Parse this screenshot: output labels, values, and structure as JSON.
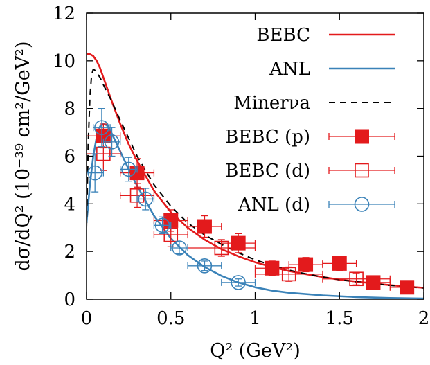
{
  "chart_data": {
    "type": "line",
    "xlabel": "Q² (GeV²)",
    "ylabel": "dσ/dQ² (10⁻³⁹ cm²/GeV²)",
    "xlim": [
      0,
      2
    ],
    "ylim": [
      0,
      12
    ],
    "xticks": [
      0,
      0.5,
      1,
      1.5,
      2
    ],
    "xtick_labels": [
      "0",
      "0.5",
      "1",
      "1.5",
      "2"
    ],
    "yticks": [
      0,
      2,
      4,
      6,
      8,
      10,
      12
    ],
    "ytick_labels": [
      "0",
      "2",
      "4",
      "6",
      "8",
      "10",
      "12"
    ],
    "grid": false,
    "legend_position": "top-right",
    "colors": {
      "red": "#e31a1c",
      "blue": "#3a82b8",
      "black": "#000000"
    },
    "series": [
      {
        "name": "BEBC",
        "kind": "line",
        "color": "#e31a1c",
        "dash": "solid",
        "x": [
          0.0,
          0.02,
          0.04,
          0.06,
          0.08,
          0.1,
          0.15,
          0.2,
          0.25,
          0.3,
          0.4,
          0.5,
          0.6,
          0.7,
          0.8,
          0.9,
          1.0,
          1.1,
          1.2,
          1.3,
          1.4,
          1.5,
          1.6,
          1.7,
          1.8,
          1.9,
          2.0
        ],
        "y": [
          10.3,
          10.28,
          10.2,
          10.0,
          9.7,
          9.3,
          8.3,
          7.35,
          6.5,
          5.8,
          4.55,
          3.65,
          3.0,
          2.5,
          2.1,
          1.8,
          1.55,
          1.35,
          1.18,
          1.05,
          0.93,
          0.82,
          0.74,
          0.66,
          0.59,
          0.53,
          0.48
        ]
      },
      {
        "name": "ANL",
        "kind": "line",
        "color": "#3a82b8",
        "dash": "solid",
        "x": [
          0.0,
          0.02,
          0.04,
          0.06,
          0.08,
          0.1,
          0.12,
          0.15,
          0.2,
          0.25,
          0.3,
          0.4,
          0.5,
          0.6,
          0.7,
          0.8,
          0.9,
          1.0,
          1.1,
          1.2,
          1.4,
          1.6,
          1.8,
          2.0
        ],
        "y": [
          3.2,
          4.8,
          6.0,
          6.8,
          7.25,
          7.35,
          7.3,
          6.95,
          6.2,
          5.45,
          4.75,
          3.5,
          2.55,
          1.85,
          1.35,
          0.98,
          0.7,
          0.5,
          0.36,
          0.27,
          0.16,
          0.09,
          0.05,
          0.03
        ]
      },
      {
        "name": "Minerνa",
        "kind": "line",
        "color": "#000000",
        "dash": "dashed",
        "x": [
          0.0,
          0.01,
          0.02,
          0.03,
          0.04,
          0.05,
          0.06,
          0.08,
          0.1,
          0.15,
          0.2,
          0.25,
          0.3,
          0.4,
          0.5,
          0.6,
          0.7,
          0.8,
          0.9,
          1.0,
          1.1,
          1.2,
          1.3,
          1.4,
          1.5,
          1.6,
          1.7,
          1.8,
          1.9,
          2.0
        ],
        "y": [
          3.0,
          6.5,
          8.5,
          9.4,
          9.65,
          9.6,
          9.5,
          9.3,
          9.0,
          8.3,
          7.5,
          6.75,
          6.0,
          4.8,
          3.9,
          3.2,
          2.7,
          2.3,
          1.95,
          1.65,
          1.42,
          1.22,
          1.06,
          0.93,
          0.82,
          0.73,
          0.65,
          0.58,
          0.52,
          0.47
        ]
      },
      {
        "name": "BEBC (p)",
        "kind": "points",
        "marker": "filled-square",
        "color": "#e31a1c",
        "x": [
          0.1,
          0.3,
          0.5,
          0.7,
          0.9,
          1.1,
          1.3,
          1.5,
          1.7,
          1.9
        ],
        "y": [
          6.85,
          5.3,
          3.3,
          3.05,
          2.35,
          1.3,
          1.45,
          1.5,
          0.7,
          0.5
        ],
        "xerr": [
          0.1,
          0.1,
          0.1,
          0.1,
          0.1,
          0.1,
          0.1,
          0.1,
          0.1,
          0.1
        ],
        "yerr": [
          0.5,
          0.6,
          0.45,
          0.45,
          0.4,
          0.3,
          0.3,
          0.3,
          0.25,
          0.2
        ]
      },
      {
        "name": "BEBC (d)",
        "kind": "points",
        "marker": "open-square",
        "color": "#e31a1c",
        "x": [
          0.1,
          0.3,
          0.5,
          0.8,
          1.2,
          1.6
        ],
        "y": [
          6.1,
          4.35,
          2.7,
          2.15,
          1.05,
          0.85
        ],
        "xerr": [
          0.1,
          0.1,
          0.1,
          0.2,
          0.2,
          0.2
        ],
        "yerr": [
          0.7,
          0.5,
          0.5,
          0.35,
          0.3,
          0.25
        ]
      },
      {
        "name": "ANL (d)",
        "kind": "points",
        "marker": "open-circle",
        "color": "#3a82b8",
        "x": [
          0.05,
          0.09,
          0.15,
          0.25,
          0.35,
          0.45,
          0.55,
          0.7,
          0.9
        ],
        "y": [
          5.3,
          7.2,
          6.6,
          5.45,
          4.2,
          3.1,
          2.15,
          1.4,
          0.7
        ],
        "xerr": [
          0.05,
          0.05,
          0.05,
          0.05,
          0.05,
          0.05,
          0.05,
          0.1,
          0.1
        ],
        "yerr": [
          0.8,
          0.8,
          0.6,
          0.5,
          0.45,
          0.35,
          0.25,
          0.2,
          0.15
        ]
      }
    ]
  }
}
